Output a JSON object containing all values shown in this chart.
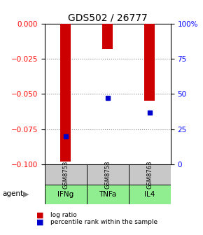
{
  "title": "GDS502 / 26777",
  "categories": [
    "IFNg",
    "TNFa",
    "IL4"
  ],
  "sample_ids": [
    "GSM8753",
    "GSM8758",
    "GSM8763"
  ],
  "log_ratios": [
    -0.098,
    -0.018,
    -0.055
  ],
  "percentile_ranks": [
    20,
    47,
    37
  ],
  "ylim_left": [
    -0.1,
    0
  ],
  "ylim_right": [
    0,
    100
  ],
  "yticks_left": [
    0,
    -0.025,
    -0.05,
    -0.075,
    -0.1
  ],
  "yticks_right": [
    0,
    25,
    50,
    75,
    100
  ],
  "bar_color": "#cc0000",
  "dot_color": "#0000cc",
  "sample_box_color": "#c8c8c8",
  "agent_box_color": "#90ee90",
  "background_color": "#ffffff",
  "legend_log_ratio": "log ratio",
  "legend_percentile": "percentile rank within the sample",
  "title_fontsize": 10,
  "tick_fontsize": 7.5
}
